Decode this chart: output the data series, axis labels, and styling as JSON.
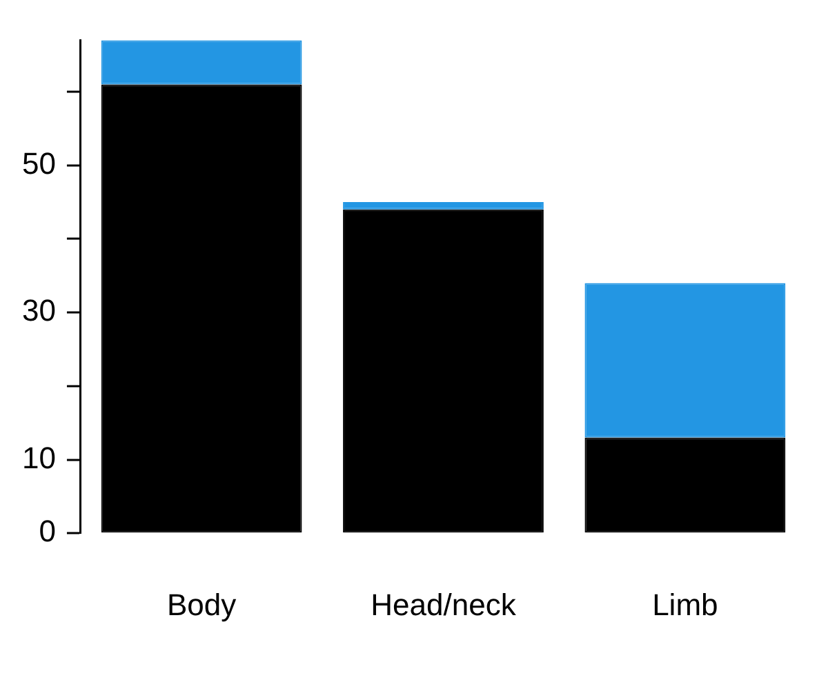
{
  "chart_data": {
    "type": "bar",
    "stacked": true,
    "categories": [
      "Body",
      "Head/neck",
      "Limb"
    ],
    "series": [
      {
        "color": "#000000",
        "values": [
          61,
          44,
          13
        ]
      },
      {
        "color": "#2396e3",
        "values": [
          6,
          1,
          21
        ]
      }
    ],
    "ylim": [
      0,
      67
    ],
    "yticks": [
      0,
      10,
      {
        "value": 20,
        "label": null
      },
      30,
      {
        "value": 40,
        "label": null
      },
      50,
      {
        "value": 60,
        "label": null
      }
    ],
    "grid": false,
    "legend": false
  }
}
